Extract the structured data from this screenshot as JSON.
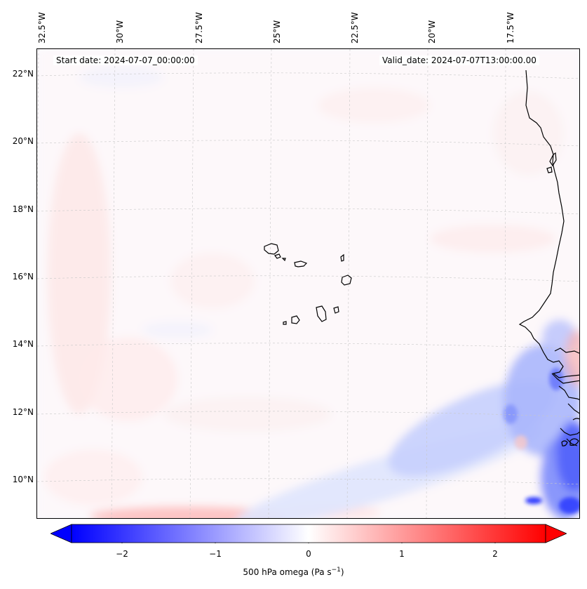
{
  "map": {
    "start_date": "Start date: 2024-07-07_00:00:00",
    "valid_date": "Valid_date: 2024-07-07T13:00:00.00",
    "longitude_labels": [
      "32.5°W",
      "30°W",
      "27.5°W",
      "25°W",
      "22.5°W",
      "20°W",
      "17.5°W"
    ],
    "latitude_labels": [
      "22°N",
      "20°N",
      "18°N",
      "16°N",
      "14°N",
      "12°N",
      "10°N"
    ],
    "region": {
      "lon_range": [
        -32.5,
        -15.0
      ],
      "lat_range": [
        9.0,
        22.7
      ]
    },
    "field": "500 hPa omega",
    "features": [
      "Cabo Verde islands",
      "West African coastline (Senegal, Gambia, Guinea-Bissau)"
    ]
  },
  "colorbar": {
    "label_text": "500 hPa omega (Pa s",
    "label_exp": "−1",
    "label_close": ")",
    "ticks": [
      "−2",
      "−1",
      "0",
      "1",
      "2"
    ],
    "range": [
      -2.75,
      2.75
    ],
    "low_color": "#0000ff",
    "mid_color": "#ffffff",
    "high_color": "#ff0000"
  }
}
